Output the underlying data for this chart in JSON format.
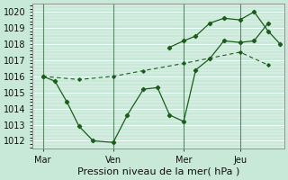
{
  "background_color": "#c8e8d8",
  "grid_color": "#b0d8c0",
  "line_color": "#1a5c1a",
  "vline_color": "#4a7a5a",
  "xlabel": "Pression niveau de la mer( hPa )",
  "ylim": [
    1011.5,
    1020.5
  ],
  "yticks": [
    1012,
    1013,
    1014,
    1015,
    1016,
    1017,
    1018,
    1019,
    1020
  ],
  "xtick_labels": [
    "Mar",
    "Ven",
    "Mer",
    "Jeu"
  ],
  "xtick_positions": [
    0,
    35,
    70,
    98
  ],
  "xlim": [
    -5,
    120
  ],
  "solid_line_x": [
    0,
    6,
    12,
    18,
    25,
    35,
    42,
    50,
    57,
    63,
    70,
    76,
    83,
    90,
    98,
    105,
    112
  ],
  "solid_line_y": [
    1016.0,
    1015.7,
    1014.4,
    1012.9,
    1012.0,
    1011.9,
    1013.6,
    1015.2,
    1015.3,
    1013.6,
    1013.2,
    1016.4,
    1017.1,
    1018.2,
    1018.1,
    1018.2,
    1019.3
  ],
  "dashed_line_x": [
    0,
    18,
    35,
    50,
    70,
    98,
    112
  ],
  "dashed_line_y": [
    1016.0,
    1015.8,
    1016.0,
    1016.35,
    1016.8,
    1017.5,
    1016.7
  ],
  "peak_line_x": [
    63,
    70,
    76,
    83,
    90,
    98,
    105,
    112,
    118
  ],
  "peak_line_y": [
    1017.8,
    1018.2,
    1018.5,
    1019.3,
    1019.6,
    1019.5,
    1020.0,
    1018.8,
    1018.0
  ],
  "vline_positions": [
    0,
    35,
    70,
    98
  ]
}
